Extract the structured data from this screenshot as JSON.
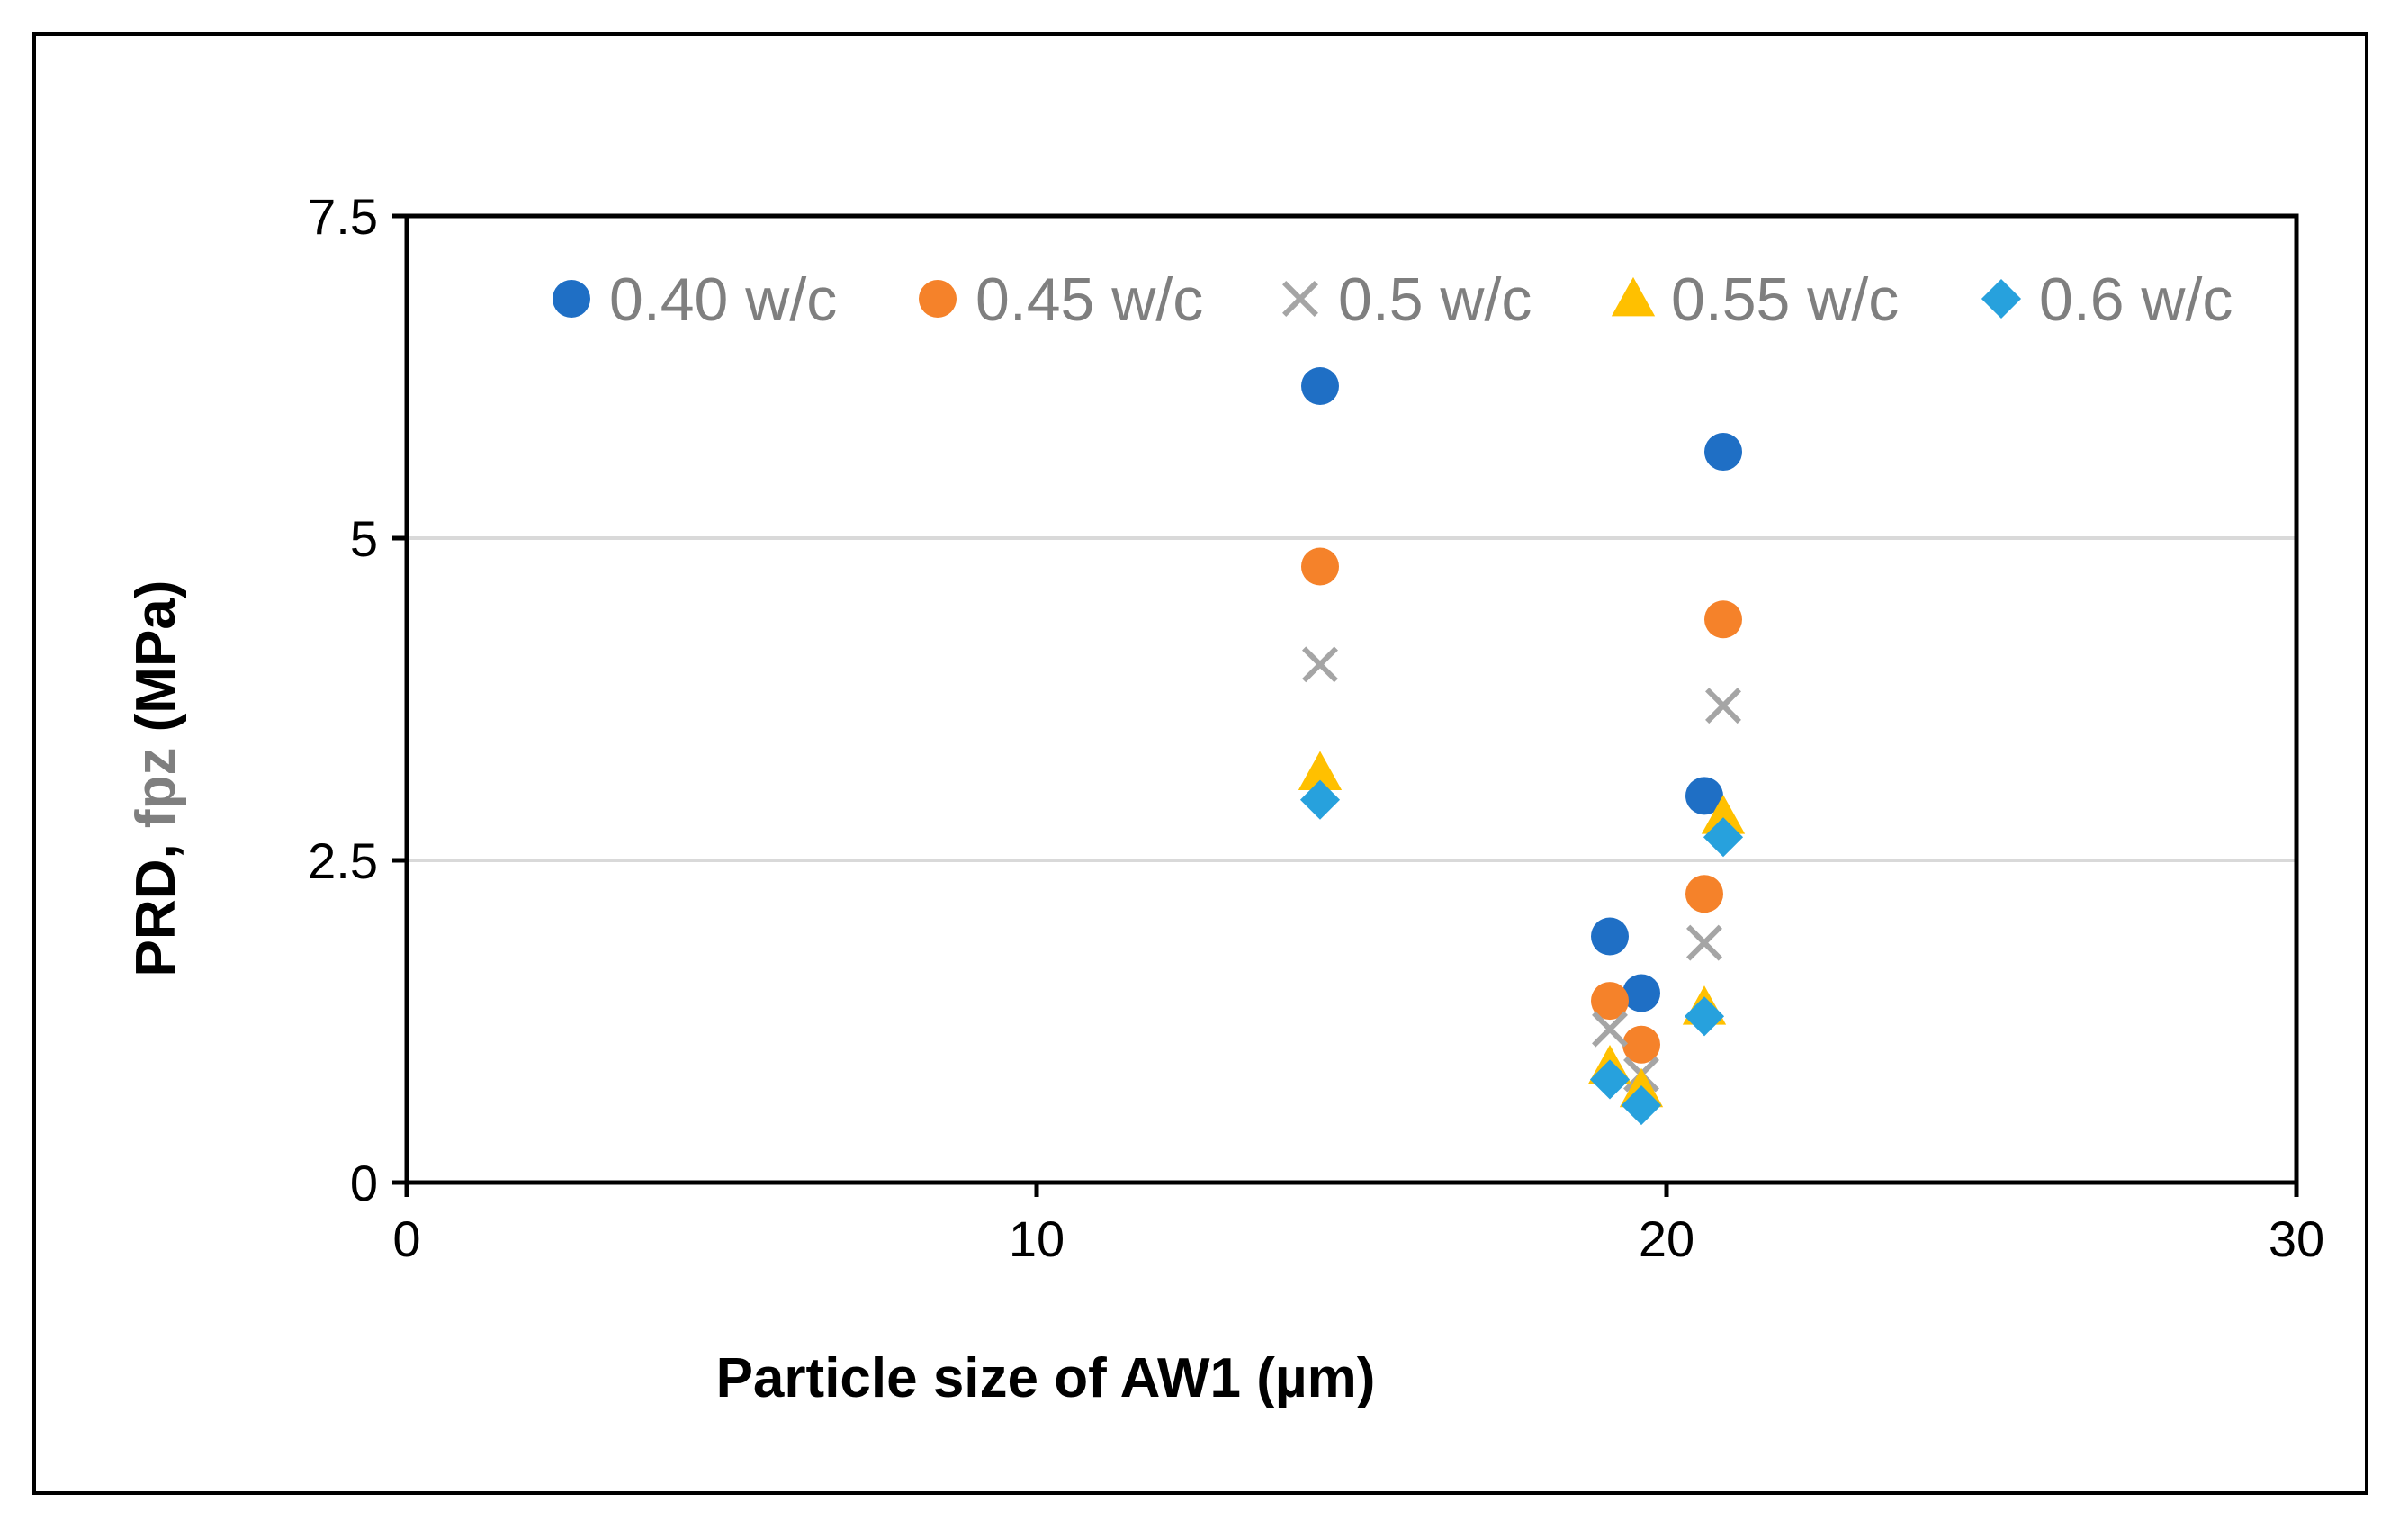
{
  "chart_data": {
    "type": "scatter",
    "title": "",
    "xlabel": "Particle size of AW1 (µm)",
    "ylabel_parts": [
      {
        "text": "PRD, ",
        "color": "#000000"
      },
      {
        "text": "fpz",
        "color": "#7f7f7f"
      },
      {
        "text": " (MPa)",
        "color": "#000000"
      }
    ],
    "xlim": [
      0,
      30
    ],
    "ylim": [
      0,
      7.5
    ],
    "xticks": [
      0,
      10,
      20,
      30
    ],
    "xtick_labels": [
      "0",
      "10",
      "20",
      "30"
    ],
    "yticks": [
      0,
      2.5,
      5,
      7.5
    ],
    "ytick_labels": [
      "0",
      "2.5",
      "5",
      "7.5"
    ],
    "gridlines": "horizontal",
    "legend_position": "top inside",
    "series": [
      {
        "name": "0.40 w/c",
        "marker": "circle",
        "color": "#1f6fc5",
        "points": [
          [
            14.5,
            6.18
          ],
          [
            19.1,
            1.91
          ],
          [
            19.6,
            1.47
          ],
          [
            20.6,
            3.0
          ],
          [
            20.9,
            5.67
          ]
        ]
      },
      {
        "name": "0.45 w/c",
        "marker": "circle",
        "color": "#f5822a",
        "points": [
          [
            14.5,
            4.78
          ],
          [
            19.1,
            1.41
          ],
          [
            19.6,
            1.07
          ],
          [
            20.6,
            2.24
          ],
          [
            20.9,
            4.37
          ]
        ]
      },
      {
        "name": "0.5 w/c",
        "marker": "x",
        "color": "#a5a5a5",
        "points": [
          [
            14.5,
            4.02
          ],
          [
            19.1,
            1.19
          ],
          [
            19.6,
            0.84
          ],
          [
            20.6,
            1.86
          ],
          [
            20.9,
            3.7
          ]
        ]
      },
      {
        "name": "0.55 w/c",
        "marker": "triangle",
        "color": "#ffc000",
        "points": [
          [
            14.5,
            3.18
          ],
          [
            19.1,
            0.9
          ],
          [
            19.6,
            0.72
          ],
          [
            20.6,
            1.36
          ],
          [
            20.9,
            2.84
          ]
        ]
      },
      {
        "name": "0.6 w/c",
        "marker": "diamond",
        "color": "#27a1dd",
        "points": [
          [
            14.5,
            2.97
          ],
          [
            19.1,
            0.8
          ],
          [
            19.6,
            0.6
          ],
          [
            20.6,
            1.29
          ],
          [
            20.9,
            2.68
          ]
        ]
      }
    ]
  }
}
